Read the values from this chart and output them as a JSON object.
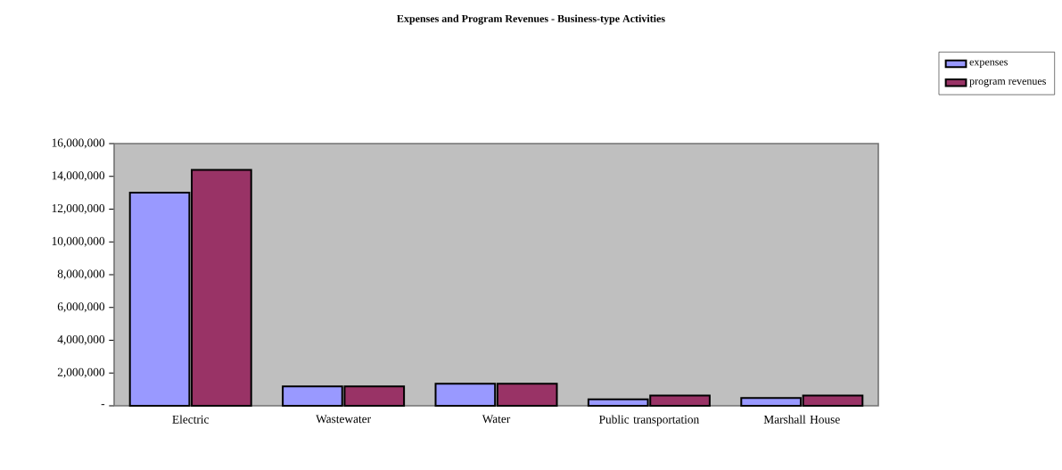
{
  "chart_data": {
    "type": "bar",
    "title": "Expenses and Program Revenues - Business-type Activities",
    "categories": [
      "Electric",
      "Wastewater",
      "Water",
      "Public transportation",
      "Marshall House"
    ],
    "series": [
      {
        "name": "expenses",
        "color": "#9999ff",
        "values": [
          13000000,
          1180000,
          1340000,
          390000,
          470000
        ]
      },
      {
        "name": "program revenues",
        "color": "#993366",
        "values": [
          14400000,
          1180000,
          1340000,
          620000,
          620000
        ]
      }
    ],
    "ylim": [
      0,
      16000000
    ],
    "yticks": [
      {
        "value": 0,
        "label": "-"
      },
      {
        "value": 2000000,
        "label": "2,000,000"
      },
      {
        "value": 4000000,
        "label": "4,000,000"
      },
      {
        "value": 6000000,
        "label": "6,000,000"
      },
      {
        "value": 8000000,
        "label": "8,000,000"
      },
      {
        "value": 10000000,
        "label": "10,000,000"
      },
      {
        "value": 12000000,
        "label": "12,000,000"
      },
      {
        "value": 14000000,
        "label": "14,000,000"
      },
      {
        "value": 16000000,
        "label": "16,000,000"
      }
    ],
    "legend": "top right"
  }
}
